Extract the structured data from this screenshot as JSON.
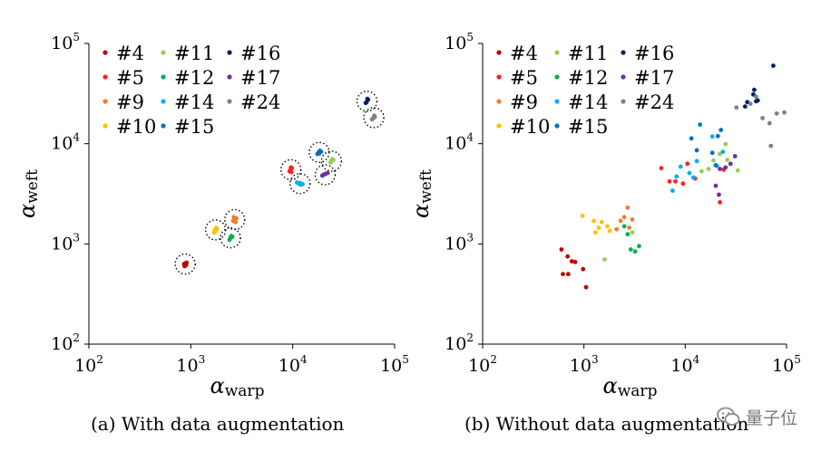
{
  "figure": {
    "captions": [
      "(a)  With data augmentation",
      "(b)  Without data augmentation"
    ],
    "watermark_text": "量子位"
  },
  "chart_data": [
    {
      "type": "scatter",
      "panel": "(a)",
      "title": "With data augmentation",
      "xlabel_symbol": "α",
      "xlabel_sub": "warp",
      "ylabel_symbol": "α",
      "ylabel_sub": "weft",
      "xscale": "log",
      "yscale": "log",
      "xlim": [
        100,
        100000
      ],
      "ylim": [
        100,
        100000
      ],
      "xticks": [
        100,
        1000,
        10000,
        100000
      ],
      "yticks": [
        100,
        1000,
        10000,
        100000
      ],
      "tick_exponents": [
        "2",
        "3",
        "4",
        "5"
      ],
      "tick_base": "10",
      "legend_location": "top-left",
      "series": [
        {
          "name": "#4",
          "color": "#c00000",
          "points": [
            [
              880,
              640
            ],
            [
              900,
              620
            ],
            [
              870,
              600
            ],
            [
              910,
              650
            ],
            [
              890,
              610
            ],
            [
              860,
              630
            ]
          ],
          "circles": [
            [
              880,
              630
            ]
          ]
        },
        {
          "name": "#5",
          "color": "#ff2020",
          "points": [
            [
              9500,
              5500
            ],
            [
              9800,
              5700
            ],
            [
              9300,
              5300
            ],
            [
              9700,
              5200
            ],
            [
              9600,
              5800
            ]
          ],
          "circles": [
            [
              9600,
              5500
            ]
          ]
        },
        {
          "name": "#9",
          "color": "#ed7d31",
          "points": [
            [
              2700,
              1750
            ],
            [
              2800,
              1800
            ],
            [
              2600,
              1700
            ],
            [
              2750,
              1650
            ],
            [
              2650,
              1850
            ]
          ],
          "circles": [
            [
              2700,
              1750
            ]
          ]
        },
        {
          "name": "#10",
          "color": "#ffc000",
          "points": [
            [
              1750,
              1350
            ],
            [
              1800,
              1400
            ],
            [
              1700,
              1300
            ],
            [
              1780,
              1450
            ],
            [
              1720,
              1380
            ]
          ],
          "circles": [
            [
              1750,
              1380
            ]
          ]
        },
        {
          "name": "#11",
          "color": "#92d050",
          "points": [
            [
              24000,
              6800
            ],
            [
              25000,
              6900
            ],
            [
              23500,
              6500
            ],
            [
              24500,
              7000
            ]
          ],
          "circles": [
            [
              24000,
              6700
            ]
          ]
        },
        {
          "name": "#12",
          "color": "#00b050",
          "points": [
            [
              2450,
              1150
            ],
            [
              2500,
              1200
            ],
            [
              2400,
              1100
            ],
            [
              2550,
              1180
            ]
          ],
          "circles": [
            [
              2450,
              1150
            ]
          ]
        },
        {
          "name": "#14",
          "color": "#00b0f0",
          "points": [
            [
              11500,
              4000
            ],
            [
              12000,
              3900
            ],
            [
              11000,
              4100
            ],
            [
              12500,
              3950
            ],
            [
              11800,
              4050
            ]
          ],
          "circles": [
            [
              11800,
              4000
            ]
          ]
        },
        {
          "name": "#15",
          "color": "#0070c0",
          "points": [
            [
              18000,
              8200
            ],
            [
              18500,
              8500
            ],
            [
              17500,
              7900
            ],
            [
              19000,
              8300
            ],
            [
              18200,
              8000
            ]
          ],
          "circles": [
            [
              18200,
              8200
            ]
          ]
        },
        {
          "name": "#16",
          "color": "#002060",
          "points": [
            [
              53000,
              26000
            ],
            [
              55000,
              27500
            ],
            [
              52000,
              25500
            ],
            [
              54000,
              28000
            ]
          ],
          "circles": [
            [
              53500,
              26500
            ]
          ]
        },
        {
          "name": "#17",
          "color": "#7030a0",
          "points": [
            [
              20000,
              4900
            ],
            [
              21000,
              5000
            ],
            [
              19500,
              4800
            ],
            [
              22000,
              5100
            ],
            [
              20500,
              4950
            ]
          ],
          "circles": [
            [
              20800,
              4900
            ]
          ]
        },
        {
          "name": "#24",
          "color": "#808080",
          "points": [
            [
              62000,
              18000
            ],
            [
              64000,
              18500
            ],
            [
              60000,
              17500
            ],
            [
              63000,
              19000
            ]
          ],
          "circles": [
            [
              62500,
              18200
            ]
          ]
        }
      ]
    },
    {
      "type": "scatter",
      "panel": "(b)",
      "title": "Without data augmentation",
      "xlabel_symbol": "α",
      "xlabel_sub": "warp",
      "ylabel_symbol": "α",
      "ylabel_sub": "weft",
      "xscale": "log",
      "yscale": "log",
      "xlim": [
        100,
        100000
      ],
      "ylim": [
        100,
        100000
      ],
      "xticks": [
        100,
        1000,
        10000,
        100000
      ],
      "yticks": [
        100,
        1000,
        10000,
        100000
      ],
      "tick_exponents": [
        "2",
        "3",
        "4",
        "5"
      ],
      "tick_base": "10",
      "legend_location": "top-left",
      "series": [
        {
          "name": "#4",
          "color": "#c00000",
          "points": [
            [
              600,
              880
            ],
            [
              620,
              500
            ],
            [
              690,
              750
            ],
            [
              700,
              500
            ],
            [
              760,
              670
            ],
            [
              820,
              660
            ],
            [
              980,
              560
            ],
            [
              1050,
              370
            ]
          ]
        },
        {
          "name": "#5",
          "color": "#ff2020",
          "points": [
            [
              5800,
              5700
            ],
            [
              7000,
              4200
            ],
            [
              8000,
              4200
            ],
            [
              9500,
              4000
            ],
            [
              10500,
              6300
            ],
            [
              22000,
              2600
            ],
            [
              24000,
              5500
            ],
            [
              12500,
              4500
            ]
          ]
        },
        {
          "name": "#9",
          "color": "#ed7d31",
          "points": [
            [
              2100,
              1400
            ],
            [
              2300,
              1700
            ],
            [
              2500,
              1850
            ],
            [
              2700,
              2300
            ],
            [
              2800,
              1450
            ],
            [
              3000,
              1750
            ]
          ]
        },
        {
          "name": "#10",
          "color": "#ffc000",
          "points": [
            [
              970,
              1900
            ],
            [
              1250,
              1700
            ],
            [
              1300,
              1300
            ],
            [
              1400,
              1450
            ],
            [
              1500,
              1650
            ],
            [
              1700,
              1500
            ],
            [
              1800,
              1350
            ]
          ]
        },
        {
          "name": "#11",
          "color": "#92d050",
          "points": [
            [
              1600,
              700
            ],
            [
              3000,
              1300
            ],
            [
              14500,
              5300
            ],
            [
              17000,
              5600
            ],
            [
              19000,
              6800
            ],
            [
              22000,
              7900
            ],
            [
              25000,
              9900
            ],
            [
              26000,
              6900
            ],
            [
              33000,
              5400
            ]
          ]
        },
        {
          "name": "#12",
          "color": "#00b050",
          "points": [
            [
              2500,
              1500
            ],
            [
              2900,
              880
            ],
            [
              3200,
              840
            ],
            [
              3500,
              950
            ],
            [
              2700,
              1250
            ]
          ]
        },
        {
          "name": "#14",
          "color": "#00b0f0",
          "points": [
            [
              7500,
              3400
            ],
            [
              9000,
              5900
            ],
            [
              11000,
              5100
            ],
            [
              12000,
              4600
            ],
            [
              13000,
              6700
            ],
            [
              18500,
              11800
            ],
            [
              23500,
              8300
            ],
            [
              8200,
              4700
            ],
            [
              20500,
              6000
            ]
          ]
        },
        {
          "name": "#15",
          "color": "#0070c0",
          "points": [
            [
              11500,
              11300
            ],
            [
              13000,
              8600
            ],
            [
              14000,
              15500
            ],
            [
              18500,
              8100
            ],
            [
              20000,
              6100
            ],
            [
              21000,
              11900
            ],
            [
              22500,
              13700
            ]
          ]
        },
        {
          "name": "#16",
          "color": "#002060",
          "points": [
            [
              39000,
              23500
            ],
            [
              41000,
              26000
            ],
            [
              47000,
              31000
            ],
            [
              48000,
              34500
            ],
            [
              50000,
              26500
            ],
            [
              52000,
              27000
            ],
            [
              74000,
              60000
            ]
          ]
        },
        {
          "name": "#17",
          "color": "#7030a0",
          "points": [
            [
              20000,
              3800
            ],
            [
              21500,
              3100
            ],
            [
              22000,
              5600
            ],
            [
              25000,
              5800
            ],
            [
              28000,
              6300
            ],
            [
              31000,
              7500
            ]
          ]
        },
        {
          "name": "#24",
          "color": "#808080",
          "points": [
            [
              32000,
              23000
            ],
            [
              44000,
              25000
            ],
            [
              58000,
              18000
            ],
            [
              68000,
              16000
            ],
            [
              70000,
              9500
            ],
            [
              80000,
              20000
            ],
            [
              95000,
              20500
            ],
            [
              50000,
              29500
            ]
          ]
        }
      ]
    }
  ]
}
